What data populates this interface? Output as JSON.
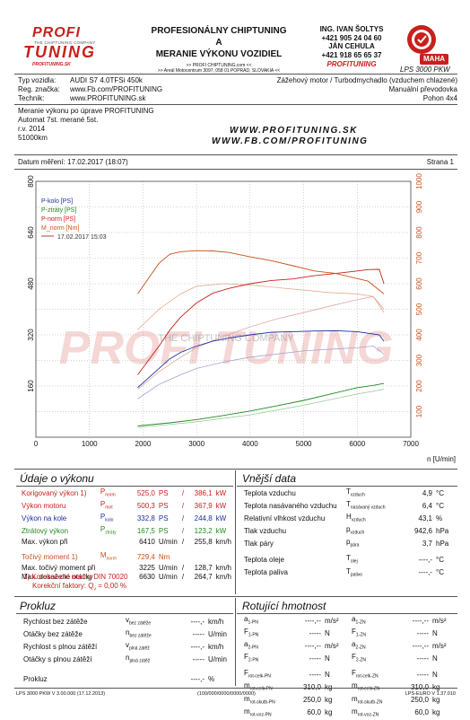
{
  "header": {
    "logo_line1": "PROFI",
    "logo_tagline": "THE CHIPTUNING COMPANY",
    "logo_line2": "TUNING",
    "logo_small": "PROFITUNING.SK",
    "title1": "PROFESIONÁLNY CHIPTUNING",
    "title2": "A",
    "title3": "MERANIE VÝKONU VOZIDIEL",
    "addr1": ">> PROFI CHIPTUNING.com <<",
    "addr2": ">> Areál Motocentrum 3097, 058 01 POPRAD, SLOVAKIA <<",
    "contact1": "ING. IVAN ŠOLTYS",
    "phone1": "+421 905 24 04 60",
    "contact2": "JÁN CEHULA",
    "phone2": "+421 918 65 65 37",
    "brand": "PROFITUNING",
    "maha": "MAHA",
    "lps": "LPS 3000 PKW"
  },
  "vehicle": {
    "type_label": "Typ vozidla:",
    "type_value": "AUDI S7 4.0TFSi 450k",
    "reg_label": "Reg. značka:",
    "reg_value": "www.Fb.com/PROFITUNING",
    "tech_label": "Technik:",
    "tech_value": "www.PROFITUNING.sk",
    "engine": "Zážehový motor / Turbodmychadlo (vzduchem chlazené)",
    "gearbox": "Manuální převodovka",
    "drive": "Pohon 4x4"
  },
  "notes": {
    "line1": "Meranie výkonu po úprave PROFITUNING",
    "line2": "Automat 7st. merané 5st.",
    "line3": "r.v. 2014",
    "line4": "51000km",
    "web1": "WWW.PROFITUNING.SK",
    "web2": "WWW.FB.COM/PROFITUNING"
  },
  "measure": {
    "date": "Datum měření: 17.02.2017 (18:07)",
    "page": "Strana 1"
  },
  "chart_data": {
    "type": "line",
    "x_unit": "n [U/min]",
    "xlim": [
      0,
      7000
    ],
    "x_ticks": [
      0,
      1000,
      2000,
      3000,
      4000,
      5000,
      6000,
      7000
    ],
    "ylim_left": [
      0,
      800
    ],
    "y_ticks_left": [
      0,
      160,
      320,
      480,
      640,
      800
    ],
    "ylim_right": [
      0,
      1000
    ],
    "y_ticks_right": [
      0,
      100,
      200,
      300,
      400,
      500,
      600,
      700,
      800,
      900,
      1000
    ],
    "legend": [
      "P-kolo [PS]",
      "P-ztráty [PS]",
      "P-norm [PS]",
      "M_norm [Nm]",
      "17.02.2017 15:03"
    ],
    "watermark": "PROFI TUNING",
    "watermark_tag": "THE CHIPTUNING COMPANY",
    "series": [
      {
        "name": "P-norm [PS]",
        "color": "#c8201c",
        "axis": "left",
        "x": [
          1900,
          2100,
          2300,
          2500,
          2700,
          3000,
          3300,
          3600,
          4000,
          4400,
          4800,
          5200,
          5600,
          6000,
          6200,
          6410,
          6500
        ],
        "y": [
          195,
          240,
          285,
          335,
          375,
          420,
          450,
          465,
          480,
          490,
          495,
          505,
          512,
          520,
          524,
          525,
          480
        ]
      },
      {
        "name": "P-kolo [PS]",
        "color": "#1f2fa0",
        "axis": "left",
        "x": [
          1900,
          2100,
          2300,
          2500,
          2700,
          3000,
          3300,
          3600,
          4000,
          4400,
          4800,
          5200,
          5600,
          6000,
          6200,
          6410,
          6500
        ],
        "y": [
          155,
          185,
          215,
          245,
          265,
          285,
          300,
          310,
          320,
          328,
          330,
          332,
          333,
          330,
          325,
          320,
          300
        ]
      },
      {
        "name": "P-ztráty [PS]",
        "color": "#1f8a1f",
        "axis": "left",
        "x": [
          1900,
          2500,
          3000,
          3500,
          4000,
          4500,
          5000,
          5500,
          6000,
          6300,
          6500
        ],
        "y": [
          35,
          45,
          55,
          68,
          82,
          98,
          115,
          135,
          155,
          162,
          168
        ]
      },
      {
        "name": "M_norm [Nm]",
        "color": "#c8501c",
        "axis": "right",
        "x": [
          1900,
          2100,
          2300,
          2500,
          2700,
          3000,
          3300,
          3600,
          4000,
          4400,
          4800,
          5200,
          5600,
          6000,
          6200,
          6500
        ],
        "y": [
          560,
          620,
          680,
          715,
          725,
          729,
          728,
          722,
          705,
          690,
          670,
          650,
          640,
          620,
          610,
          560
        ]
      },
      {
        "name": "P-norm ghost",
        "color": "#dd9a90",
        "axis": "left",
        "x": [
          1900,
          2300,
          2700,
          3000,
          3500,
          4000,
          4500,
          5000,
          5500,
          6000,
          6300,
          6500
        ],
        "y": [
          150,
          205,
          250,
          280,
          315,
          345,
          370,
          390,
          410,
          430,
          440,
          390
        ]
      },
      {
        "name": "P-kolo ghost",
        "color": "#9a9ad0",
        "axis": "left",
        "x": [
          1900,
          2300,
          2700,
          3000,
          3500,
          4000,
          4500,
          5000,
          5500,
          6000,
          6300,
          6500
        ],
        "y": [
          120,
          165,
          195,
          215,
          235,
          250,
          260,
          270,
          275,
          280,
          285,
          260
        ]
      },
      {
        "name": "M ghost",
        "color": "#e0a080",
        "axis": "right",
        "x": [
          1900,
          2300,
          2700,
          3000,
          3500,
          4000,
          4500,
          5000,
          5500,
          6000,
          6300,
          6500
        ],
        "y": [
          420,
          500,
          560,
          590,
          600,
          595,
          585,
          575,
          565,
          560,
          550,
          500
        ]
      },
      {
        "name": "P-ztráty ghost",
        "color": "#90c890",
        "axis": "left",
        "x": [
          1900,
          3000,
          4000,
          5000,
          6000,
          6500
        ],
        "y": [
          30,
          48,
          70,
          100,
          135,
          150
        ]
      }
    ]
  },
  "results": {
    "heading": "Údaje o výkonu",
    "rows": [
      {
        "label": "Korigovaný výkon 1)",
        "sym": "P",
        "sub": "norm",
        "v1": "525,0",
        "u1": "PS",
        "sep": "/",
        "v2": "386,1",
        "u2": "kW",
        "cls": "red"
      },
      {
        "label": "Výkon motoru",
        "sym": "P",
        "sub": "mot",
        "v1": "500,3",
        "u1": "PS",
        "sep": "/",
        "v2": "367,9",
        "u2": "kW",
        "cls": "red"
      },
      {
        "label": "Výkon na kole",
        "sym": "P",
        "sub": "kolo",
        "v1": "332,8",
        "u1": "PS",
        "sep": "/",
        "v2": "244,8",
        "u2": "kW",
        "cls": "blue"
      },
      {
        "label": "Ztrátový výkon",
        "sym": "P",
        "sub": "ztráty",
        "v1": "167,5",
        "u1": "PS",
        "sep": "/",
        "v2": "123,2",
        "u2": "kW",
        "cls": "green"
      },
      {
        "label": "Max. výkon při",
        "sym": "",
        "sub": "",
        "v1": "6410",
        "u1": "U/min",
        "sep": "/",
        "v2": "255,8",
        "u2": "km/h",
        "cls": "plain"
      },
      {
        "label": "Točivý moment 1)",
        "sym": "M",
        "sub": "norm",
        "v1": "729,4",
        "u1": "Nm",
        "sep": "",
        "v2": "",
        "u2": "",
        "cls": "orange"
      },
      {
        "label": "Max. točivý moment při",
        "sym": "",
        "sub": "",
        "v1": "3225",
        "u1": "U/min",
        "sep": "/",
        "v2": "128,7",
        "u2": "km/h",
        "cls": "plain"
      },
      {
        "label": "Max. dosažené otáčky",
        "sym": "",
        "sub": "",
        "v1": "6630",
        "u1": "U/min",
        "sep": "/",
        "v2": "264,7",
        "u2": "km/h",
        "cls": "plain"
      }
    ],
    "footnote1": "1) Korekce dle normy DIN 70020",
    "footnote2": "Korekční faktory: Q",
    "footnote2_sub": "v",
    "footnote2_val": "= 0,00 %"
  },
  "ambient": {
    "heading": "Vnější data",
    "rows": [
      {
        "label": "Teplota vzduchu",
        "sym": "T",
        "sub": "vzduch",
        "val": "4,9",
        "unit": "°C"
      },
      {
        "label": "Teplota nasávaného vzduchu",
        "sym": "T",
        "sub": "nasávaný vzduch",
        "val": "6,4",
        "unit": "°C"
      },
      {
        "label": "Relativní vlhkost vzduchu",
        "sym": "H",
        "sub": "vzduch",
        "val": "43,1",
        "unit": "%"
      },
      {
        "label": "Tlak vzduchu",
        "sym": "p",
        "sub": "vzduch",
        "val": "942,6",
        "unit": "hPa"
      },
      {
        "label": "Tlak páry",
        "sym": "p",
        "sub": "pára",
        "val": "3,7",
        "unit": "hPa"
      },
      {
        "label": "Teplota oleje",
        "sym": "T",
        "sub": "olej",
        "val": "----,-",
        "unit": "°C"
      },
      {
        "label": "Teplota paliva",
        "sym": "T",
        "sub": "palivo",
        "val": "----,-",
        "unit": "°C"
      }
    ]
  },
  "prokluz": {
    "heading": "Prokluz",
    "rows": [
      {
        "label": "Rychlost bez zátěže",
        "sym": "v",
        "sub": "bez zátěže",
        "val": "----,-",
        "unit": "km/h"
      },
      {
        "label": "Otáčky bez zátěže",
        "sym": "n",
        "sub": "bez zátěže",
        "val": "-----",
        "unit": "U/min"
      },
      {
        "label": "Rychlost s plnou zátěží",
        "sym": "v",
        "sub": "plná zátěž",
        "val": "----,-",
        "unit": "km/h"
      },
      {
        "label": "Otáčky s plnou zátěží",
        "sym": "n",
        "sub": "plná zátěž",
        "val": "-----",
        "unit": "U/min"
      },
      {
        "label": "Prokluz",
        "sym": "",
        "sub": "",
        "val": "----,-",
        "unit": "%"
      }
    ]
  },
  "rot": {
    "heading": "Rotující hmotnost",
    "left": [
      {
        "sym": "a",
        "sub": "1-PN",
        "val": "----,--",
        "unit": "m/s²"
      },
      {
        "sym": "F",
        "sub": "1-PN",
        "val": "-----",
        "unit": "N"
      },
      {
        "sym": "a",
        "sub": "2-PN",
        "val": "----,--",
        "unit": "m/s²"
      },
      {
        "sym": "F",
        "sub": "2-PN",
        "val": "-----",
        "unit": "N"
      },
      {
        "sym": "F",
        "sub": "rot-celk-PN",
        "val": "-----",
        "unit": "N"
      },
      {
        "sym": "m",
        "sub": "rot-celk-PN",
        "val": "310,0",
        "unit": "kg"
      },
      {
        "sym": "m",
        "sub": "rot-skutb-PN",
        "val": "250,0",
        "unit": "kg"
      },
      {
        "sym": "m",
        "sub": "rot-voz-PN",
        "val": "60,0",
        "unit": "kg"
      }
    ],
    "right": [
      {
        "sym": "a",
        "sub": "1-ZN",
        "val": "----,--",
        "unit": "m/s²"
      },
      {
        "sym": "F",
        "sub": "1-ZN",
        "val": "-----",
        "unit": "N"
      },
      {
        "sym": "a",
        "sub": "2-ZN",
        "val": "----,--",
        "unit": "m/s²"
      },
      {
        "sym": "F",
        "sub": "2-ZN",
        "val": "-----",
        "unit": "N"
      },
      {
        "sym": "F",
        "sub": "rot-celk-ZN",
        "val": "-----",
        "unit": "N"
      },
      {
        "sym": "m",
        "sub": "rot-celk-ZN",
        "val": "310,0",
        "unit": "kg"
      },
      {
        "sym": "m",
        "sub": "rot-skutb-ZN",
        "val": "250,0",
        "unit": "kg"
      },
      {
        "sym": "m",
        "sub": "rot-voz-ZN",
        "val": "60,0",
        "unit": "kg"
      }
    ]
  },
  "footer": {
    "left": "LPS 3000 PKW V 3.00.000 (17.12.2013)",
    "mid": "(100/000/0000/0000/0000)",
    "right": "LPS-EURO V 1.37.010"
  }
}
